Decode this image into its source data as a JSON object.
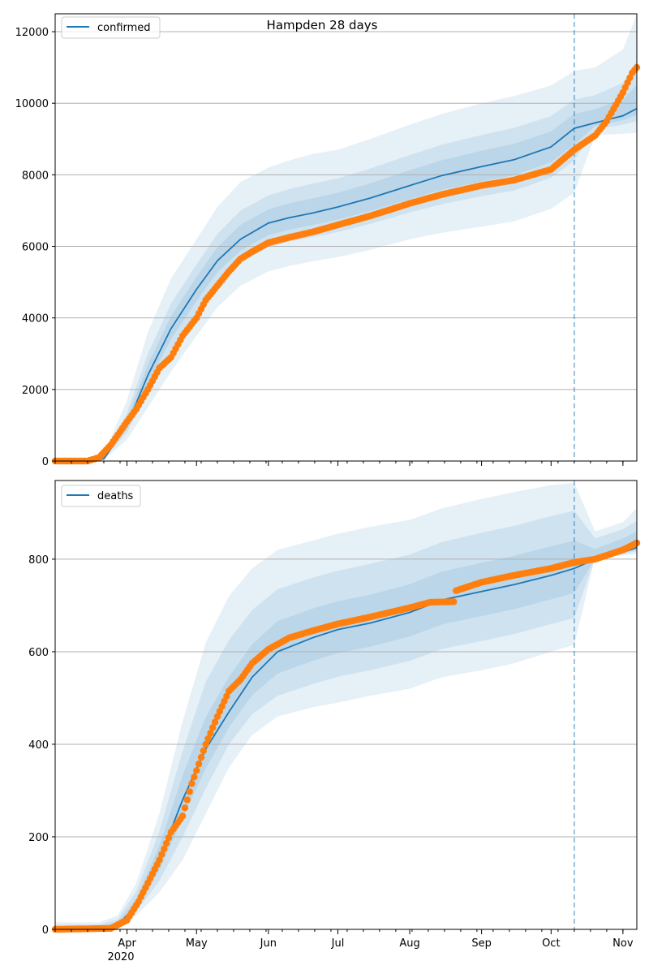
{
  "figure": {
    "title": "Hampden 28 days",
    "forecast_date": "2020-10-11",
    "month_ticks": [
      "Apr",
      "May",
      "Jun",
      "Jul",
      "Aug",
      "Sep",
      "Oct",
      "Nov"
    ],
    "year_label": "2020",
    "colors": {
      "model": "#1f77b4",
      "observed": "#ff7f0e",
      "band": "#1f77b4",
      "grid": "#b0b0b0"
    }
  },
  "chart_data": [
    {
      "type": "line",
      "legend": "confirmed",
      "legend_position": "upper-left",
      "grid": "y-only",
      "x_range": [
        "2020-03-01",
        "2020-11-07"
      ],
      "ylim": [
        0,
        12500
      ],
      "y_ticks": [
        0,
        2000,
        4000,
        6000,
        8000,
        10000,
        12000
      ],
      "model": {
        "name": "confirmed",
        "x": [
          "2020-03-01",
          "2020-03-15",
          "2020-03-22",
          "2020-04-01",
          "2020-04-10",
          "2020-04-20",
          "2020-05-01",
          "2020-05-10",
          "2020-05-20",
          "2020-06-01",
          "2020-06-10",
          "2020-06-20",
          "2020-07-01",
          "2020-07-15",
          "2020-08-01",
          "2020-08-15",
          "2020-09-01",
          "2020-09-15",
          "2020-10-01",
          "2020-10-11",
          "2020-10-20",
          "2020-11-01",
          "2020-11-07"
        ],
        "y": [
          0,
          0,
          60,
          1000,
          2400,
          3700,
          4800,
          5600,
          6200,
          6650,
          6800,
          6930,
          7100,
          7350,
          7700,
          7980,
          8230,
          8420,
          8780,
          9300,
          9450,
          9650,
          9850
        ]
      },
      "bands": [
        {
          "label": "outer",
          "lower": [
            0,
            0,
            30,
            600,
            1500,
            2500,
            3500,
            4300,
            4900,
            5300,
            5450,
            5580,
            5700,
            5900,
            6200,
            6380,
            6550,
            6700,
            7050,
            7500,
            9100,
            9150,
            9170
          ],
          "upper": [
            0,
            0,
            200,
            1700,
            3600,
            5100,
            6200,
            7100,
            7800,
            8200,
            8400,
            8580,
            8700,
            9000,
            9400,
            9700,
            10000,
            10200,
            10500,
            10900,
            11000,
            11500,
            12500
          ]
        },
        {
          "label": "mid",
          "lower": [
            0,
            0,
            45,
            800,
            1950,
            3100,
            4150,
            4950,
            5550,
            5980,
            6130,
            6260,
            6400,
            6630,
            6950,
            7180,
            7400,
            7560,
            7920,
            8400,
            9280,
            9400,
            9500
          ],
          "upper": [
            0,
            0,
            130,
            1350,
            3000,
            4400,
            5500,
            6350,
            7000,
            7425,
            7600,
            7755,
            7900,
            8175,
            8550,
            8840,
            9110,
            9310,
            9640,
            10100,
            10225,
            10575,
            11175
          ]
        },
        {
          "label": "inner",
          "lower": [
            0,
            0,
            52,
            900,
            2175,
            3400,
            4475,
            5275,
            5875,
            6315,
            6465,
            6595,
            6750,
            6990,
            7325,
            7580,
            7815,
            7990,
            8350,
            8850,
            9365,
            9525,
            9675
          ],
          "upper": [
            0,
            0,
            95,
            1175,
            2700,
            4050,
            5150,
            5975,
            6600,
            7040,
            7200,
            7340,
            7500,
            7760,
            8125,
            8410,
            8670,
            8865,
            9210,
            9700,
            9840,
            10110,
            10510
          ]
        }
      ],
      "observed": {
        "name": "observed",
        "x": [
          "2020-03-01",
          "2020-03-15",
          "2020-03-20",
          "2020-03-25",
          "2020-04-01",
          "2020-04-05",
          "2020-04-10",
          "2020-04-15",
          "2020-04-20",
          "2020-04-25",
          "2020-05-01",
          "2020-05-05",
          "2020-05-10",
          "2020-05-15",
          "2020-05-20",
          "2020-05-25",
          "2020-06-01",
          "2020-06-10",
          "2020-06-20",
          "2020-07-01",
          "2020-07-15",
          "2020-08-01",
          "2020-08-15",
          "2020-09-01",
          "2020-09-15",
          "2020-10-01",
          "2020-10-11",
          "2020-10-20",
          "2020-10-25",
          "2020-11-01",
          "2020-11-05",
          "2020-11-07"
        ],
        "y": [
          0,
          0,
          100,
          450,
          1100,
          1450,
          2000,
          2600,
          2900,
          3500,
          4000,
          4500,
          4900,
          5300,
          5650,
          5850,
          6100,
          6250,
          6400,
          6600,
          6850,
          7200,
          7450,
          7700,
          7850,
          8150,
          8700,
          9100,
          9500,
          10300,
          10850,
          11000
        ]
      }
    },
    {
      "type": "line",
      "legend": "deaths",
      "legend_position": "upper-left",
      "grid": "y-only",
      "x_range": [
        "2020-03-01",
        "2020-11-07"
      ],
      "ylim": [
        0,
        970
      ],
      "y_ticks": [
        0,
        200,
        400,
        600,
        800
      ],
      "model": {
        "name": "deaths",
        "x": [
          "2020-03-01",
          "2020-03-20",
          "2020-03-28",
          "2020-04-05",
          "2020-04-15",
          "2020-04-25",
          "2020-05-05",
          "2020-05-15",
          "2020-05-25",
          "2020-06-05",
          "2020-06-20",
          "2020-07-01",
          "2020-07-15",
          "2020-08-01",
          "2020-08-15",
          "2020-09-01",
          "2020-09-15",
          "2020-10-01",
          "2020-10-11",
          "2020-10-20",
          "2020-11-01",
          "2020-11-07"
        ],
        "y": [
          0,
          2,
          10,
          50,
          150,
          280,
          390,
          470,
          545,
          600,
          630,
          648,
          662,
          685,
          712,
          730,
          745,
          765,
          780,
          800,
          815,
          825
        ]
      },
      "bands": [
        {
          "label": "outer",
          "lower": [
            0,
            0,
            5,
            30,
            80,
            150,
            250,
            350,
            420,
            460,
            480,
            490,
            505,
            520,
            545,
            560,
            575,
            600,
            615,
            805,
            808,
            812
          ],
          "upper": [
            15,
            15,
            30,
            100,
            250,
            450,
            620,
            720,
            780,
            820,
            840,
            855,
            870,
            885,
            910,
            930,
            945,
            960,
            965,
            860,
            880,
            910
          ]
        },
        {
          "label": "mid",
          "lower": [
            0,
            1,
            7,
            38,
            105,
            200,
            305,
            400,
            465,
            505,
            530,
            546,
            560,
            580,
            606,
            623,
            638,
            660,
            673,
            804,
            811,
            817
          ],
          "upper": [
            10,
            10,
            22,
            82,
            212,
            385,
            535,
            625,
            690,
            735,
            760,
            775,
            790,
            810,
            837,
            857,
            872,
            893,
            905,
            845,
            865,
            883
          ]
        },
        {
          "label": "inner",
          "lower": [
            0,
            1,
            9,
            44,
            128,
            240,
            348,
            437,
            506,
            553,
            580,
            597,
            611,
            633,
            659,
            677,
            692,
            713,
            727,
            802,
            813,
            821
          ],
          "upper": [
            6,
            6,
            16,
            66,
            181,
            333,
            459,
            546,
            616,
            666,
            693,
            709,
            723,
            746,
            773,
            792,
            807,
            828,
            840,
            822,
            845,
            860
          ]
        }
      ],
      "observed": {
        "name": "observed",
        "x": [
          "2020-03-01",
          "2020-03-25",
          "2020-04-01",
          "2020-04-06",
          "2020-04-10",
          "2020-04-15",
          "2020-04-20",
          "2020-04-25",
          "2020-04-29",
          "2020-05-05",
          "2020-05-10",
          "2020-05-15",
          "2020-05-20",
          "2020-05-25",
          "2020-06-01",
          "2020-06-10",
          "2020-06-20",
          "2020-07-01",
          "2020-07-15",
          "2020-08-01",
          "2020-08-10",
          "2020-08-20",
          "2020-08-21",
          "2020-09-01",
          "2020-09-15",
          "2020-10-01",
          "2020-10-11",
          "2020-10-20",
          "2020-11-01",
          "2020-11-07"
        ],
        "y": [
          0,
          2,
          20,
          60,
          100,
          150,
          210,
          245,
          315,
          400,
          460,
          515,
          540,
          575,
          605,
          630,
          645,
          660,
          675,
          695,
          707,
          708,
          732,
          750,
          765,
          780,
          793,
          800,
          820,
          835
        ]
      }
    }
  ]
}
